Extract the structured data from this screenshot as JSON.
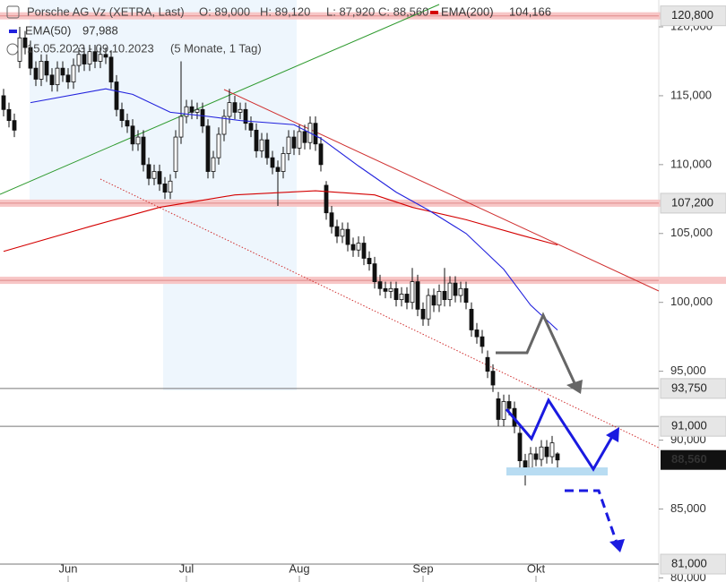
{
  "chart_data": {
    "type": "candlestick",
    "title": "Porsche AG Vz (XETRA, Last)",
    "ohlc_labels": [
      "O: 89,000",
      "H: 89,120",
      "L: 87,920",
      "C: 88,560"
    ],
    "date_range": "15.05.2023 - 09.10.2023",
    "period": "(5 Monate, 1 Tag)",
    "categories": [
      null,
      null,
      null,
      null,
      null,
      null,
      null,
      null,
      null,
      null,
      null,
      null,
      "Jun",
      null,
      null,
      null,
      null,
      null,
      null,
      null,
      null,
      null,
      null,
      null,
      null,
      null,
      null,
      null,
      null,
      null,
      null,
      null,
      null,
      null,
      "Jul",
      null,
      null,
      null,
      null,
      null,
      null,
      null,
      null,
      null,
      null,
      null,
      null,
      null,
      null,
      null,
      null,
      null,
      null,
      null,
      null,
      "Aug",
      null,
      null,
      null,
      null,
      null,
      null,
      null,
      null,
      null,
      null,
      null,
      null,
      null,
      null,
      null,
      null,
      null,
      null,
      null,
      null,
      null,
      null,
      "Sep",
      null,
      null,
      null,
      null,
      null,
      null,
      null,
      null,
      null,
      null,
      null,
      null,
      null,
      null,
      null,
      null,
      null,
      null,
      null,
      null,
      "Okt",
      null,
      null,
      null,
      null
    ],
    "open": [
      115000,
      114000,
      113200,
      117500,
      119200,
      118500,
      117000,
      116200,
      117500,
      116500,
      115800,
      117000,
      116500,
      116000,
      117200,
      118000,
      117300,
      118200,
      117500,
      118000,
      117800,
      116000,
      114000,
      113200,
      112800,
      111500,
      112000,
      110000,
      109000,
      109500,
      108600,
      108000,
      109500,
      112000,
      113500,
      114200,
      113800,
      114000,
      112800,
      109500,
      110500,
      112200,
      113500,
      114500,
      113800,
      114000,
      113000,
      112500,
      111000,
      111800,
      110500,
      109800,
      109500,
      110800,
      112000,
      111200,
      112400,
      111600,
      113000,
      111500,
      108500,
      106500,
      105500,
      104800,
      105300,
      104200,
      103800,
      104300,
      103200,
      102800,
      101500,
      101000,
      100800,
      101000,
      100200,
      100600,
      100000,
      101500,
      99500,
      98800,
      100500,
      99800,
      100800,
      100200,
      101400,
      100500,
      101000,
      99500,
      98000,
      97500,
      96000,
      95000,
      93000,
      91500,
      92800,
      92300,
      90500,
      88500,
      88000,
      89000,
      88600,
      89500,
      88800,
      89000
    ],
    "high": [
      115500,
      114500,
      113700,
      120000,
      119700,
      119000,
      117500,
      118000,
      118000,
      117000,
      117500,
      117500,
      117000,
      117700,
      118500,
      118500,
      118700,
      118700,
      118500,
      118500,
      118300,
      116500,
      114500,
      113700,
      113300,
      112500,
      112500,
      110500,
      110000,
      110000,
      109100,
      109300,
      112500,
      117500,
      114700,
      114700,
      114500,
      114500,
      113300,
      111000,
      112700,
      114000,
      115500,
      115000,
      114500,
      114500,
      113500,
      113000,
      112300,
      112300,
      111000,
      110300,
      111300,
      112500,
      112500,
      112900,
      112900,
      113500,
      113500,
      112000,
      108800,
      107000,
      106000,
      105800,
      105800,
      104700,
      104800,
      104800,
      103700,
      103300,
      102000,
      101500,
      101500,
      101500,
      101100,
      101100,
      102500,
      102000,
      100000,
      101000,
      101000,
      101300,
      102500,
      101900,
      101900,
      101500,
      101500,
      100000,
      98500,
      98000,
      96500,
      95500,
      93500,
      93300,
      93300,
      92800,
      91000,
      89000,
      89500,
      89500,
      90000,
      90000,
      90300,
      89120
    ],
    "low": [
      113500,
      112700,
      112000,
      117000,
      118000,
      116500,
      115700,
      115700,
      116000,
      115300,
      115300,
      116000,
      115500,
      115500,
      116700,
      116800,
      116800,
      117000,
      117000,
      117300,
      115500,
      113500,
      112700,
      112300,
      111000,
      111000,
      109500,
      108500,
      108500,
      108100,
      107500,
      107500,
      109000,
      111500,
      113000,
      113300,
      113300,
      112300,
      109000,
      109000,
      110000,
      111700,
      113000,
      113300,
      113300,
      112500,
      112000,
      110500,
      110500,
      110000,
      109300,
      107000,
      109000,
      110300,
      110700,
      110700,
      111100,
      111100,
      111000,
      109500,
      106000,
      105000,
      104300,
      104300,
      103700,
      103300,
      103300,
      102700,
      102300,
      101000,
      100500,
      100300,
      100300,
      99700,
      99700,
      99500,
      99500,
      99000,
      98300,
      98300,
      99300,
      99300,
      99700,
      99700,
      100000,
      100000,
      99500,
      97500,
      97000,
      96300,
      94500,
      93500,
      91000,
      91000,
      91800,
      90500,
      88000,
      86700,
      87500,
      88100,
      88100,
      88300,
      88300,
      87920
    ],
    "close": [
      114000,
      113200,
      112500,
      119200,
      118500,
      117000,
      116200,
      117500,
      116500,
      115800,
      117000,
      116500,
      116000,
      117200,
      118000,
      117300,
      118200,
      117500,
      118000,
      117800,
      116000,
      114000,
      113200,
      112800,
      111500,
      112000,
      110000,
      109000,
      109500,
      108600,
      108000,
      108800,
      112000,
      113500,
      114200,
      113800,
      114000,
      112800,
      109500,
      110500,
      112200,
      113500,
      114500,
      113800,
      114000,
      113000,
      112500,
      111000,
      111800,
      110500,
      109800,
      109500,
      110800,
      112000,
      111200,
      112400,
      111600,
      113000,
      111500,
      110000,
      106500,
      105500,
      104800,
      105300,
      104200,
      103800,
      104300,
      103200,
      102800,
      101500,
      101000,
      100800,
      101000,
      100200,
      100600,
      100000,
      101500,
      99500,
      98800,
      100500,
      99800,
      100800,
      100200,
      101400,
      100500,
      101000,
      100000,
      98000,
      97500,
      96800,
      95000,
      94000,
      91500,
      92800,
      92300,
      91000,
      88500,
      88000,
      89000,
      88600,
      89500,
      88800,
      89800,
      88560
    ],
    "series": [
      {
        "name": "EMA(200)",
        "color": "#d40000",
        "value_label": "104,166",
        "x": [
          0,
          16,
          29,
          43,
          58,
          69,
          76,
          86,
          96,
          103
        ],
        "values": [
          103700,
          105500,
          106900,
          107800,
          108100,
          107800,
          106900,
          106000,
          104900,
          104166
        ]
      },
      {
        "name": "EMA(50)",
        "color": "#2222dd",
        "value_label": "97,988",
        "x": [
          5,
          19,
          24,
          31,
          38,
          44,
          54,
          59,
          66,
          73,
          79,
          86,
          93,
          98,
          103
        ],
        "values": [
          114500,
          115500,
          115100,
          113800,
          113500,
          113200,
          112900,
          111900,
          109900,
          108000,
          106700,
          105000,
          102400,
          99800,
          97988
        ]
      }
    ],
    "ylim": [
      79700,
      121950
    ],
    "yticks": [
      {
        "value": 80000,
        "label": "80,000"
      },
      {
        "value": 85000,
        "label": "85,000"
      },
      {
        "value": 90000,
        "label": "90,000"
      },
      {
        "value": 95000,
        "label": "95,000"
      },
      {
        "value": 100000,
        "label": "100,000"
      },
      {
        "value": 105000,
        "label": "105,000"
      },
      {
        "value": 110000,
        "label": "110,000"
      },
      {
        "value": 115000,
        "label": "115,000"
      },
      {
        "value": 120000,
        "label": "120,000"
      }
    ],
    "levels": [
      {
        "value": 120800,
        "label": "120,800",
        "style": "band"
      },
      {
        "value": 107200,
        "label": "107,200",
        "style": "band"
      },
      {
        "value": 101600,
        "style": "band"
      },
      {
        "value": 93750,
        "label": "93,750",
        "style": "line"
      },
      {
        "value": 91000,
        "label": "91,000",
        "style": "line"
      },
      {
        "value": 81000,
        "label": "81,000",
        "style": "line"
      }
    ],
    "last_price": {
      "value": 88560,
      "label": "88,560"
    }
  }
}
